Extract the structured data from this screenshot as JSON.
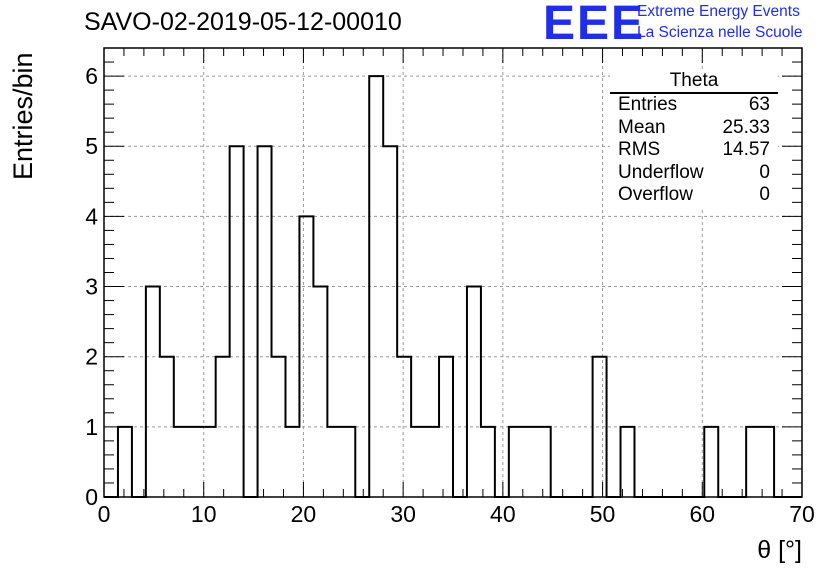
{
  "title": "SAVO-02-2019-05-12-00010",
  "logo": {
    "mark": "EEE",
    "line1": "Extreme Energy Events",
    "line2": "La Scienza nelle Scuole",
    "color": "#1f2ee8"
  },
  "chart_data": {
    "type": "histogram",
    "xlabel": "θ [°]",
    "ylabel": "Entries/bin",
    "xlim": [
      0,
      70
    ],
    "ylim": [
      0,
      6.4
    ],
    "bin_width": 1.4,
    "xticks": [
      "0",
      "10",
      "20",
      "30",
      "40",
      "50",
      "60",
      "70"
    ],
    "yticks": [
      "0",
      "1",
      "2",
      "3",
      "4",
      "5",
      "6"
    ],
    "grid": true,
    "line_color": "#000000",
    "bin_edges_start": 0,
    "counts": [
      0,
      1,
      0,
      3,
      2,
      1,
      1,
      1,
      2,
      5,
      0,
      5,
      2,
      1,
      4,
      3,
      1,
      1,
      0,
      6,
      5,
      2,
      1,
      1,
      2,
      0,
      3,
      1,
      0,
      1,
      1,
      1,
      0,
      0,
      0,
      2,
      0,
      1,
      0,
      0,
      0,
      0,
      0,
      1,
      0,
      0,
      1,
      1,
      0,
      0
    ],
    "stats_box": {
      "title": "Theta",
      "placement": "top-right",
      "rows": [
        {
          "label": "Entries",
          "value": "63"
        },
        {
          "label": "Mean",
          "value": "25.33"
        },
        {
          "label": "RMS",
          "value": "14.57"
        },
        {
          "label": "Underflow",
          "value": "0"
        },
        {
          "label": "Overflow",
          "value": "0"
        }
      ]
    }
  }
}
